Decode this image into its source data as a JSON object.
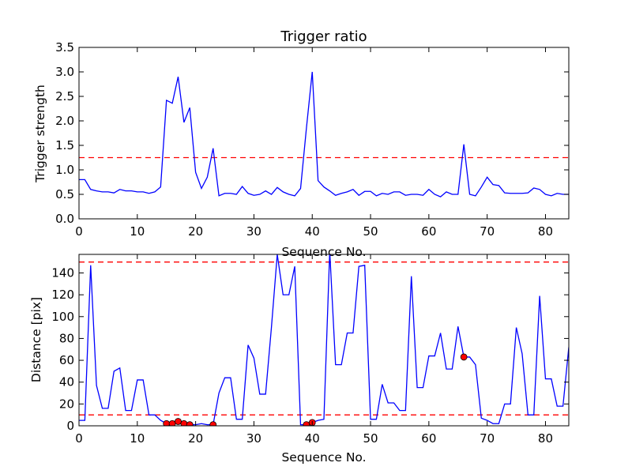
{
  "colors": {
    "series": "#0000ff",
    "reference": "#ff0000",
    "marker": "#ff0000"
  },
  "chart_data": [
    {
      "type": "line",
      "title": "Trigger ratio",
      "xlabel": "Sequence No.",
      "ylabel": "Trigger strength",
      "xlim": [
        0,
        84
      ],
      "ylim": [
        0,
        3.5
      ],
      "xticks": [
        0,
        10,
        20,
        30,
        40,
        50,
        60,
        70,
        80
      ],
      "yticks": [
        0.0,
        0.5,
        1.0,
        1.5,
        2.0,
        2.5,
        3.0,
        3.5
      ],
      "ytick_labels": [
        "0.0",
        "0.5",
        "1.0",
        "1.5",
        "2.0",
        "2.5",
        "3.0",
        "3.5"
      ],
      "grid": false,
      "series": [
        {
          "x": [
            0,
            1,
            2,
            3,
            4,
            5,
            6,
            7,
            8,
            9,
            10,
            11,
            12,
            13,
            14,
            15,
            16,
            17,
            18,
            19,
            20,
            21,
            22,
            23,
            24,
            25,
            26,
            27,
            28,
            29,
            30,
            31,
            32,
            33,
            34,
            35,
            36,
            37,
            38,
            39,
            40,
            41,
            42,
            43,
            44,
            45,
            46,
            47,
            48,
            49,
            50,
            51,
            52,
            53,
            54,
            55,
            56,
            57,
            58,
            59,
            60,
            61,
            62,
            63,
            64,
            65,
            66,
            67,
            68,
            69,
            70,
            71,
            72,
            73,
            74,
            75,
            76,
            77,
            78,
            79,
            80,
            81,
            82,
            83,
            84
          ],
          "values": [
            0.8,
            0.8,
            0.6,
            0.57,
            0.55,
            0.55,
            0.53,
            0.6,
            0.57,
            0.57,
            0.55,
            0.55,
            0.52,
            0.55,
            0.65,
            2.42,
            2.36,
            2.9,
            1.97,
            2.27,
            0.95,
            0.62,
            0.85,
            1.44,
            0.47,
            0.52,
            0.52,
            0.5,
            0.66,
            0.52,
            0.48,
            0.5,
            0.57,
            0.5,
            0.64,
            0.55,
            0.5,
            0.47,
            0.62,
            1.85,
            3.0,
            0.78,
            0.65,
            0.57,
            0.48,
            0.52,
            0.55,
            0.6,
            0.48,
            0.56,
            0.56,
            0.47,
            0.52,
            0.5,
            0.55,
            0.55,
            0.48,
            0.5,
            0.5,
            0.48,
            0.6,
            0.5,
            0.45,
            0.55,
            0.5,
            0.5,
            1.52,
            0.5,
            0.47,
            0.65,
            0.85,
            0.7,
            0.68,
            0.53,
            0.52,
            0.52,
            0.52,
            0.53,
            0.63,
            0.6,
            0.5,
            0.47,
            0.52,
            0.5,
            0.5
          ]
        }
      ],
      "reference_lines": [
        1.25
      ]
    },
    {
      "type": "line",
      "title": "",
      "xlabel": "Sequence No.",
      "ylabel": "Distance [pix]",
      "xlim": [
        0,
        84
      ],
      "ylim": [
        0,
        157
      ],
      "xticks": [
        0,
        10,
        20,
        30,
        40,
        50,
        60,
        70,
        80
      ],
      "yticks": [
        0,
        20,
        40,
        60,
        80,
        100,
        120,
        140
      ],
      "ytick_labels": [
        "0",
        "20",
        "40",
        "60",
        "80",
        "100",
        "120",
        "140"
      ],
      "grid": false,
      "series": [
        {
          "x": [
            0,
            1,
            2,
            3,
            4,
            5,
            6,
            7,
            8,
            9,
            10,
            11,
            12,
            13,
            14,
            15,
            16,
            17,
            18,
            19,
            20,
            21,
            22,
            23,
            24,
            25,
            26,
            27,
            28,
            29,
            30,
            31,
            32,
            33,
            34,
            35,
            36,
            37,
            38,
            39,
            40,
            41,
            42,
            43,
            44,
            45,
            46,
            47,
            48,
            49,
            50,
            51,
            52,
            53,
            54,
            55,
            56,
            57,
            58,
            59,
            60,
            61,
            62,
            63,
            64,
            65,
            66,
            67,
            68,
            69,
            70,
            71,
            72,
            73,
            74,
            75,
            76,
            77,
            78,
            79,
            80,
            81,
            82,
            83,
            84
          ],
          "values": [
            5,
            5,
            147,
            37,
            16,
            16,
            50,
            53,
            14,
            14,
            42,
            42,
            10,
            10,
            5,
            2,
            2,
            4,
            2,
            1,
            1,
            2,
            1,
            1,
            30,
            44,
            44,
            6,
            6,
            74,
            62,
            29,
            29,
            90,
            157,
            120,
            120,
            146,
            1,
            1,
            3,
            5,
            6,
            160,
            56,
            56,
            85,
            85,
            146,
            147,
            6,
            6,
            38,
            21,
            21,
            14,
            14,
            137,
            35,
            35,
            64,
            64,
            85,
            52,
            52,
            91,
            63,
            63,
            56,
            7,
            5,
            2,
            2,
            20,
            20,
            90,
            66,
            10,
            10,
            119,
            43,
            43,
            18,
            18,
            72
          ]
        }
      ],
      "markers": {
        "x": [
          15,
          16,
          17,
          18,
          19,
          23,
          39,
          40,
          66
        ],
        "values": [
          2,
          2,
          4,
          2,
          1,
          1,
          1,
          3,
          63
        ]
      },
      "reference_lines": [
        10,
        150
      ]
    }
  ]
}
